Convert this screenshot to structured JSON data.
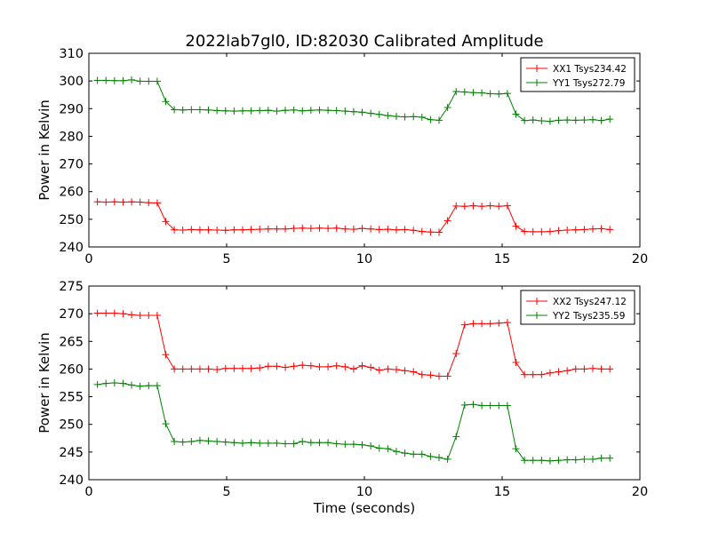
{
  "chart_data": [
    {
      "type": "line",
      "title": "2022lab7gl0, ID:82030 Calibrated Amplitude",
      "xlabel": "",
      "ylabel": "Power in Kelvin",
      "xlim": [
        0,
        20
      ],
      "ylim": [
        240,
        310
      ],
      "xticks": [
        0,
        5,
        10,
        15,
        20
      ],
      "yticks": [
        240,
        250,
        260,
        270,
        280,
        290,
        300,
        310
      ],
      "grid": false,
      "legend_position": "top-right",
      "x": [
        0.31,
        0.62,
        0.93,
        1.24,
        1.55,
        1.86,
        2.17,
        2.48,
        2.79,
        3.1,
        3.41,
        3.72,
        4.03,
        4.34,
        4.65,
        4.96,
        5.27,
        5.58,
        5.89,
        6.2,
        6.51,
        6.82,
        7.13,
        7.44,
        7.75,
        8.06,
        8.37,
        8.68,
        8.99,
        9.3,
        9.61,
        9.92,
        10.23,
        10.54,
        10.85,
        11.16,
        11.47,
        11.78,
        12.09,
        12.4,
        12.71,
        13.02,
        13.33,
        13.64,
        13.95,
        14.26,
        14.57,
        14.88,
        15.19,
        15.5,
        15.81,
        16.12,
        16.43,
        16.74,
        17.05,
        17.36,
        17.67,
        17.98,
        18.29,
        18.6,
        18.91
      ],
      "series": [
        {
          "name": "XX1 Tsys234.42",
          "color": "#ff0000",
          "values": [
            256.3,
            256.2,
            256.3,
            256.2,
            256.3,
            256.2,
            256.0,
            255.9,
            249.2,
            246.2,
            246.1,
            246.3,
            246.2,
            246.2,
            246.1,
            246.0,
            246.2,
            246.2,
            246.3,
            246.4,
            246.5,
            246.5,
            246.5,
            246.7,
            246.8,
            246.7,
            246.8,
            246.7,
            246.8,
            246.5,
            246.4,
            246.7,
            246.5,
            246.3,
            246.4,
            246.2,
            246.3,
            246.0,
            245.6,
            245.4,
            245.3,
            249.5,
            254.8,
            254.7,
            254.9,
            254.7,
            254.9,
            254.7,
            254.9,
            247.5,
            245.6,
            245.5,
            245.5,
            245.6,
            245.9,
            246.1,
            246.2,
            246.3,
            246.5,
            246.6,
            246.3
          ]
        },
        {
          "name": "YY1 Tsys272.79",
          "color": "#008000",
          "values": [
            300.2,
            300.2,
            300.1,
            300.1,
            300.4,
            299.9,
            299.9,
            299.9,
            292.6,
            289.6,
            289.5,
            289.6,
            289.6,
            289.5,
            289.3,
            289.2,
            289.1,
            289.2,
            289.2,
            289.3,
            289.4,
            289.1,
            289.4,
            289.5,
            289.2,
            289.4,
            289.5,
            289.4,
            289.3,
            289.1,
            288.9,
            288.7,
            288.3,
            287.9,
            287.5,
            287.2,
            287.0,
            287.1,
            286.9,
            286.0,
            285.8,
            290.4,
            296.2,
            296.0,
            295.8,
            295.7,
            295.4,
            295.3,
            295.5,
            288.0,
            285.7,
            285.9,
            285.6,
            285.4,
            285.8,
            285.9,
            285.8,
            285.9,
            286.0,
            285.7,
            286.2
          ]
        }
      ]
    },
    {
      "type": "line",
      "title": "",
      "xlabel": "Time (seconds)",
      "ylabel": "Power in Kelvin",
      "xlim": [
        0,
        20
      ],
      "ylim": [
        240,
        275
      ],
      "xticks": [
        0,
        5,
        10,
        15,
        20
      ],
      "yticks": [
        240,
        245,
        250,
        255,
        260,
        265,
        270,
        275
      ],
      "grid": false,
      "legend_position": "top-right",
      "x": [
        0.31,
        0.62,
        0.93,
        1.24,
        1.55,
        1.86,
        2.17,
        2.48,
        2.79,
        3.1,
        3.41,
        3.72,
        4.03,
        4.34,
        4.65,
        4.96,
        5.27,
        5.58,
        5.89,
        6.2,
        6.51,
        6.82,
        7.13,
        7.44,
        7.75,
        8.06,
        8.37,
        8.68,
        8.99,
        9.3,
        9.61,
        9.92,
        10.23,
        10.54,
        10.85,
        11.16,
        11.47,
        11.78,
        12.09,
        12.4,
        12.71,
        13.02,
        13.33,
        13.64,
        13.95,
        14.26,
        14.57,
        14.88,
        15.19,
        15.5,
        15.81,
        16.12,
        16.43,
        16.74,
        17.05,
        17.36,
        17.67,
        17.98,
        18.29,
        18.6,
        18.91
      ],
      "series": [
        {
          "name": "XX2 Tsys247.12",
          "color": "#ff0000",
          "values": [
            270.1,
            270.1,
            270.1,
            270.0,
            269.8,
            269.7,
            269.7,
            269.7,
            262.6,
            260.0,
            260.0,
            260.0,
            260.0,
            260.0,
            259.9,
            260.1,
            260.1,
            260.1,
            260.1,
            260.2,
            260.5,
            260.5,
            260.3,
            260.5,
            260.7,
            260.6,
            260.4,
            260.4,
            260.6,
            260.4,
            260.0,
            260.6,
            260.3,
            259.8,
            260.0,
            259.9,
            259.7,
            259.5,
            259.0,
            258.9,
            258.7,
            258.7,
            262.8,
            268.0,
            268.2,
            268.2,
            268.2,
            268.3,
            268.4,
            261.2,
            259.0,
            259.0,
            259.0,
            259.3,
            259.5,
            259.7,
            260.0,
            260.0,
            260.1,
            260.0,
            260.0
          ]
        },
        {
          "name": "YY2 Tsys235.59",
          "color": "#008000",
          "values": [
            257.2,
            257.4,
            257.5,
            257.4,
            257.1,
            256.9,
            257.0,
            257.0,
            250.1,
            246.9,
            246.8,
            246.9,
            247.1,
            247.0,
            246.9,
            246.8,
            246.7,
            246.6,
            246.7,
            246.6,
            246.6,
            246.6,
            246.5,
            246.5,
            246.9,
            246.7,
            246.7,
            246.7,
            246.5,
            246.4,
            246.4,
            246.3,
            246.1,
            245.7,
            245.6,
            245.1,
            244.8,
            244.6,
            244.6,
            244.2,
            244.0,
            243.7,
            247.8,
            253.5,
            253.6,
            253.4,
            253.4,
            253.4,
            253.4,
            245.6,
            243.5,
            243.5,
            243.5,
            243.4,
            243.5,
            243.6,
            243.6,
            243.7,
            243.7,
            243.9,
            243.9
          ]
        }
      ]
    }
  ]
}
